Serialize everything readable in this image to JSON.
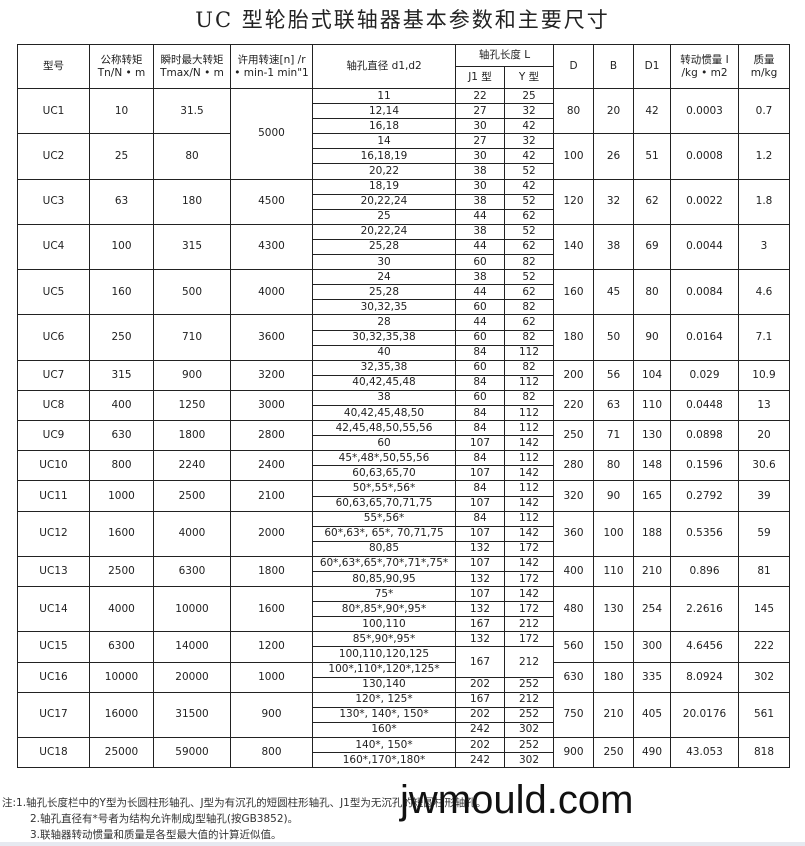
{
  "title": "UC 型轮胎式联轴器基本参数和主要尺寸",
  "headers": {
    "model": "型号",
    "tn_line1": "公称转矩",
    "tn_line2": "Tn/N • m",
    "tmax_line1": "瞬时最大转矩",
    "tmax_line2": "Tmax/N • m",
    "speed_line1": "许用转速[n] /r",
    "speed_line2": "• min-1 min\"1",
    "bore": "轴孔直径 d1,d2",
    "length": "轴孔长度 L",
    "j1": "J1 型",
    "y": "Y 型",
    "D": "D",
    "B": "B",
    "D1": "D1",
    "inertia_line1": "转动惯量 I",
    "inertia_line2": "/kg • m2",
    "mass_line1": "质量",
    "mass_line2": "m/kg"
  },
  "rows": [
    {
      "model": "UC1",
      "tn": "10",
      "tmax": "31.5",
      "speed": "5000",
      "D": "80",
      "B": "20",
      "D1": "42",
      "I": "0.0003",
      "m": "0.7",
      "bores": [
        {
          "d": "11",
          "j": "22",
          "y": "25"
        },
        {
          "d": "12,14",
          "j": "27",
          "y": "32"
        },
        {
          "d": "16,18",
          "j": "30",
          "y": "42"
        }
      ]
    },
    {
      "model": "UC2",
      "tn": "25",
      "tmax": "80",
      "D": "100",
      "B": "26",
      "D1": "51",
      "I": "0.0008",
      "m": "1.2",
      "bores": [
        {
          "d": "14",
          "j": "27",
          "y": "32"
        },
        {
          "d": "16,18,19",
          "j": "30",
          "y": "42"
        },
        {
          "d": "20,22",
          "j": "38",
          "y": "52"
        }
      ]
    },
    {
      "model": "UC3",
      "tn": "63",
      "tmax": "180",
      "speed": "4500",
      "D": "120",
      "B": "32",
      "D1": "62",
      "I": "0.0022",
      "m": "1.8",
      "bores": [
        {
          "d": "18,19",
          "j": "30",
          "y": "42"
        },
        {
          "d": "20,22,24",
          "j": "38",
          "y": "52"
        },
        {
          "d": "25",
          "j": "44",
          "y": "62"
        }
      ]
    },
    {
      "model": "UC4",
      "tn": "100",
      "tmax": "315",
      "speed": "4300",
      "D": "140",
      "B": "38",
      "D1": "69",
      "I": "0.0044",
      "m": "3",
      "bores": [
        {
          "d": "20,22,24",
          "j": "38",
          "y": "52"
        },
        {
          "d": "25,28",
          "j": "44",
          "y": "62"
        },
        {
          "d": "30",
          "j": "60",
          "y": "82"
        }
      ]
    },
    {
      "model": "UC5",
      "tn": "160",
      "tmax": "500",
      "speed": "4000",
      "D": "160",
      "B": "45",
      "D1": "80",
      "I": "0.0084",
      "m": "4.6",
      "bores": [
        {
          "d": "24",
          "j": "38",
          "y": "52"
        },
        {
          "d": "25,28",
          "j": "44",
          "y": "62"
        },
        {
          "d": "30,32,35",
          "j": "60",
          "y": "82"
        }
      ]
    },
    {
      "model": "UC6",
      "tn": "250",
      "tmax": "710",
      "speed": "3600",
      "D": "180",
      "B": "50",
      "D1": "90",
      "I": "0.0164",
      "m": "7.1",
      "bores": [
        {
          "d": "28",
          "j": "44",
          "y": "62"
        },
        {
          "d": "30,32,35,38",
          "j": "60",
          "y": "82"
        },
        {
          "d": "40",
          "j": "84",
          "y": "112"
        }
      ]
    },
    {
      "model": "UC7",
      "tn": "315",
      "tmax": "900",
      "speed": "3200",
      "D": "200",
      "B": "56",
      "D1": "104",
      "I": "0.029",
      "m": "10.9",
      "bores": [
        {
          "d": "32,35,38",
          "j": "60",
          "y": "82"
        },
        {
          "d": "40,42,45,48",
          "j": "84",
          "y": "112"
        }
      ]
    },
    {
      "model": "UC8",
      "tn": "400",
      "tmax": "1250",
      "speed": "3000",
      "D": "220",
      "B": "63",
      "D1": "110",
      "I": "0.0448",
      "m": "13",
      "bores": [
        {
          "d": "38",
          "j": "60",
          "y": "82"
        },
        {
          "d": "40,42,45,48,50",
          "j": "84",
          "y": "112"
        }
      ]
    },
    {
      "model": "UC9",
      "tn": "630",
      "tmax": "1800",
      "speed": "2800",
      "D": "250",
      "B": "71",
      "D1": "130",
      "I": "0.0898",
      "m": "20",
      "bores": [
        {
          "d": "42,45,48,50,55,56",
          "j": "84",
          "y": "112"
        },
        {
          "d": "60",
          "j": "107",
          "y": "142"
        }
      ]
    },
    {
      "model": "UC10",
      "tn": "800",
      "tmax": "2240",
      "speed": "2400",
      "D": "280",
      "B": "80",
      "D1": "148",
      "I": "0.1596",
      "m": "30.6",
      "bores": [
        {
          "d": "45*,48*,50,55,56",
          "j": "84",
          "y": "112"
        },
        {
          "d": "60,63,65,70",
          "j": "107",
          "y": "142"
        }
      ]
    },
    {
      "model": "UC11",
      "tn": "1000",
      "tmax": "2500",
      "speed": "2100",
      "D": "320",
      "B": "90",
      "D1": "165",
      "I": "0.2792",
      "m": "39",
      "bores": [
        {
          "d": "50*,55*,56*",
          "j": "84",
          "y": "112"
        },
        {
          "d": "60,63,65,70,71,75",
          "j": "107",
          "y": "142"
        }
      ]
    },
    {
      "model": "UC12",
      "tn": "1600",
      "tmax": "4000",
      "speed": "2000",
      "D": "360",
      "B": "100",
      "D1": "188",
      "I": "0.5356",
      "m": "59",
      "bores": [
        {
          "d": "55*,56*",
          "j": "84",
          "y": "112"
        },
        {
          "d": "60*,63*, 65*, 70,71,75",
          "j": "107",
          "y": "142"
        },
        {
          "d": "80,85",
          "j": "132",
          "y": "172"
        }
      ]
    },
    {
      "model": "UC13",
      "tn": "2500",
      "tmax": "6300",
      "speed": "1800",
      "D": "400",
      "B": "110",
      "D1": "210",
      "I": "0.896",
      "m": "81",
      "bores": [
        {
          "d": "60*,63*,65*,70*,71*,75*",
          "j": "107",
          "y": "142"
        },
        {
          "d": "80,85,90,95",
          "j": "132",
          "y": "172"
        }
      ]
    },
    {
      "model": "UC14",
      "tn": "4000",
      "tmax": "10000",
      "speed": "1600",
      "D": "480",
      "B": "130",
      "D1": "254",
      "I": "2.2616",
      "m": "145",
      "bores": [
        {
          "d": "75*",
          "j": "107",
          "y": "142"
        },
        {
          "d": "80*,85*,90*,95*",
          "j": "132",
          "y": "172"
        },
        {
          "d": "100,110",
          "j": "167",
          "y": "212"
        }
      ]
    },
    {
      "model": "UC15",
      "tn": "6300",
      "tmax": "14000",
      "speed": "1200",
      "D": "560",
      "B": "150",
      "D1": "300",
      "I": "4.6456",
      "m": "222",
      "bores": [
        {
          "d": "85*,90*,95*",
          "j": "132",
          "y": "172"
        },
        {
          "d": "100,110,120,125",
          "j": "167",
          "y": "212"
        }
      ]
    },
    {
      "model": "UC16",
      "tn": "10000",
      "tmax": "20000",
      "speed": "1000",
      "D": "630",
      "B": "180",
      "D1": "335",
      "I": "8.0924",
      "m": "302",
      "bores": [
        {
          "d": "100*,110*,120*,125*"
        },
        {
          "d": "130,140",
          "j": "202",
          "y": "252"
        }
      ]
    },
    {
      "model": "UC17",
      "tn": "16000",
      "tmax": "31500",
      "speed": "900",
      "D": "750",
      "B": "210",
      "D1": "405",
      "I": "20.0176",
      "m": "561",
      "bores": [
        {
          "d": "120*, 125*",
          "j": "167",
          "y": "212"
        },
        {
          "d": "130*, 140*, 150*",
          "j": "202",
          "y": "252"
        },
        {
          "d": "160*",
          "j": "242",
          "y": "302"
        }
      ]
    },
    {
      "model": "UC18",
      "tn": "25000",
      "tmax": "59000",
      "speed": "800",
      "D": "900",
      "B": "250",
      "D1": "490",
      "I": "43.053",
      "m": "818",
      "bores": [
        {
          "d": "140*, 150*",
          "j": "202",
          "y": "252"
        },
        {
          "d": "160*,170*,180*",
          "j": "242",
          "y": "302"
        }
      ]
    }
  ],
  "notes": [
    "注:1.轴孔长度栏中的Y型为长圆柱形轴孔、J型为有沉孔的短圆柱形轴孔、J1型为无沉孔的短圆柱形轴孔。",
    "2.轴孔直径有*号者为结构允许制成J型轴孔(按GB3852)。",
    "3.联轴器转动惯量和质量是各型最大值的计算近似值。"
  ],
  "watermark": "jwmould.com"
}
